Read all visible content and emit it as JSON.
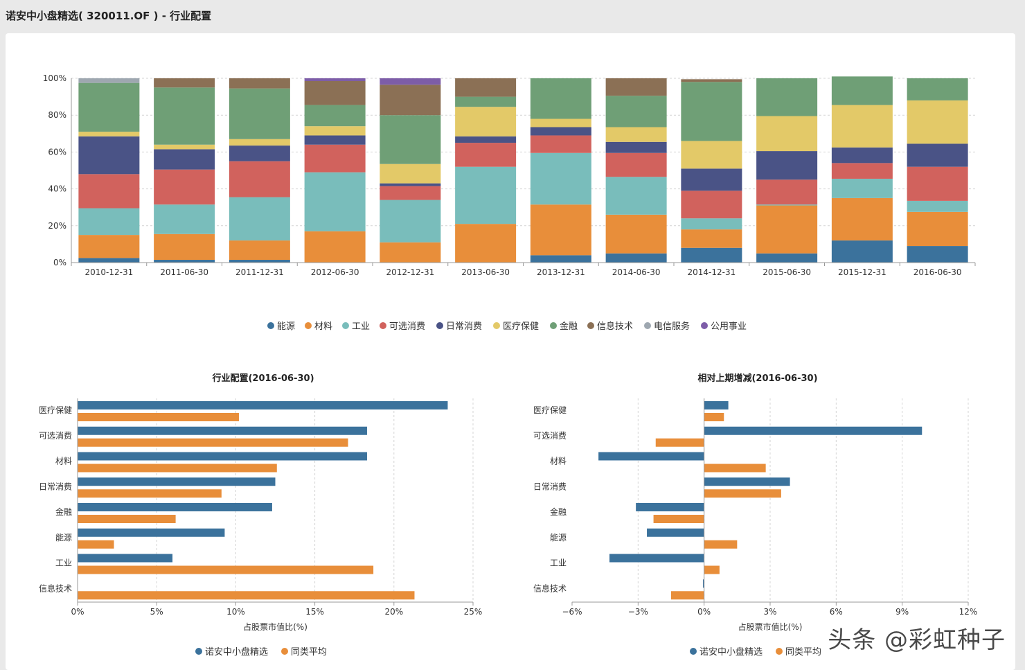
{
  "page": {
    "title": "诺安中小盘精选( 320011.OF ) - 行业配置",
    "watermark": "头条 @彩虹种子"
  },
  "colors": {
    "能源": "#3b729c",
    "材料": "#e88e3a",
    "工业": "#79bdbb",
    "可选消费": "#d1625d",
    "日常消费": "#4a5386",
    "医疗保健": "#e3c968",
    "金融": "#6f9f76",
    "信息技术": "#8b7055",
    "电信服务": "#9ea7b0",
    "公用事业": "#7d5da8",
    "fund": "#3b729c",
    "peer": "#e88e3a"
  },
  "chart_data": [
    {
      "type": "bar",
      "stacked": true,
      "percent": true,
      "title": "",
      "categories": [
        "2010-12-31",
        "2011-06-30",
        "2011-12-31",
        "2012-06-30",
        "2012-12-31",
        "2013-06-30",
        "2013-12-31",
        "2014-06-30",
        "2014-12-31",
        "2015-06-30",
        "2015-12-31",
        "2016-06-30"
      ],
      "ylim": [
        0,
        100
      ],
      "yticks": [
        "0%",
        "20%",
        "40%",
        "60%",
        "80%",
        "100%"
      ],
      "legend_position": "bottom",
      "series": [
        {
          "name": "能源",
          "values": [
            2.5,
            1.5,
            1.5,
            0,
            0,
            0,
            4,
            5,
            8,
            5,
            12,
            9
          ]
        },
        {
          "name": "材料",
          "values": [
            12.5,
            14,
            10.5,
            17,
            11,
            21,
            27.5,
            21,
            10,
            26,
            23,
            18.5
          ]
        },
        {
          "name": "工业",
          "values": [
            14.5,
            16,
            23.5,
            32,
            23,
            31,
            28,
            20.5,
            6,
            0.5,
            10.5,
            6
          ]
        },
        {
          "name": "可选消费",
          "values": [
            18.5,
            19,
            19.5,
            15,
            7.5,
            13,
            9.5,
            13,
            15,
            13.5,
            8.5,
            18.5
          ]
        },
        {
          "name": "日常消费",
          "values": [
            20.5,
            11,
            8.5,
            5,
            1.5,
            3.5,
            4.5,
            6,
            12,
            15.5,
            8.5,
            12.5
          ]
        },
        {
          "name": "医疗保健",
          "values": [
            2.5,
            2.5,
            3.5,
            5,
            10.5,
            16,
            4.5,
            8,
            15,
            19,
            23,
            23.5
          ]
        },
        {
          "name": "金融",
          "values": [
            26.5,
            31,
            27.5,
            11.5,
            26.5,
            5.5,
            22,
            17,
            32,
            20.5,
            15.5,
            12
          ]
        },
        {
          "name": "信息技术",
          "values": [
            0,
            5,
            5.5,
            13,
            16.5,
            10,
            0,
            9.5,
            1.5,
            0,
            0,
            0
          ]
        },
        {
          "name": "电信服务",
          "values": [
            2.5,
            0,
            0,
            0,
            0,
            0,
            0,
            0,
            0,
            0,
            0,
            0
          ]
        },
        {
          "name": "公用事业",
          "values": [
            0,
            0,
            0,
            1.5,
            3.5,
            0,
            0,
            0,
            0,
            0,
            0,
            0
          ]
        }
      ]
    },
    {
      "type": "bar",
      "orientation": "horizontal",
      "title": "行业配置(2016-06-30)",
      "xlabel": "占股票市值比(%)",
      "ylabel": "",
      "xlim": [
        0,
        25
      ],
      "xticks": [
        0,
        5,
        10,
        15,
        20,
        25
      ],
      "xtick_labels": [
        "0%",
        "5%",
        "10%",
        "15%",
        "20%",
        "25%"
      ],
      "categories": [
        "医疗保健",
        "可选消费",
        "材料",
        "日常消费",
        "金融",
        "能源",
        "工业",
        "信息技术"
      ],
      "legend_position": "bottom",
      "series": [
        {
          "name": "诺安中小盘精选",
          "values": [
            23.4,
            18.3,
            18.3,
            12.5,
            12.3,
            9.3,
            6.0,
            0
          ]
        },
        {
          "name": "同类平均",
          "values": [
            10.2,
            17.1,
            12.6,
            9.1,
            6.2,
            2.3,
            18.7,
            21.3
          ]
        }
      ]
    },
    {
      "type": "bar",
      "orientation": "horizontal",
      "title": "相对上期增减(2016-06-30)",
      "xlabel": "占股票市值比(%)",
      "ylabel": "",
      "xlim": [
        -6,
        12
      ],
      "xticks": [
        -6,
        -3,
        0,
        3,
        6,
        9,
        12
      ],
      "xtick_labels": [
        "−6%",
        "−3%",
        "0%",
        "3%",
        "6%",
        "9%",
        "12%"
      ],
      "categories": [
        "医疗保健",
        "可选消费",
        "材料",
        "日常消费",
        "金融",
        "能源",
        "工业",
        "信息技术"
      ],
      "legend_position": "bottom",
      "series": [
        {
          "name": "诺安中小盘精选",
          "values": [
            1.1,
            9.9,
            -4.8,
            3.9,
            -3.1,
            -2.6,
            -4.3,
            -0.05
          ]
        },
        {
          "name": "同类平均",
          "values": [
            0.9,
            -2.2,
            2.8,
            3.5,
            -2.3,
            1.5,
            0.7,
            -1.5
          ]
        }
      ]
    }
  ]
}
